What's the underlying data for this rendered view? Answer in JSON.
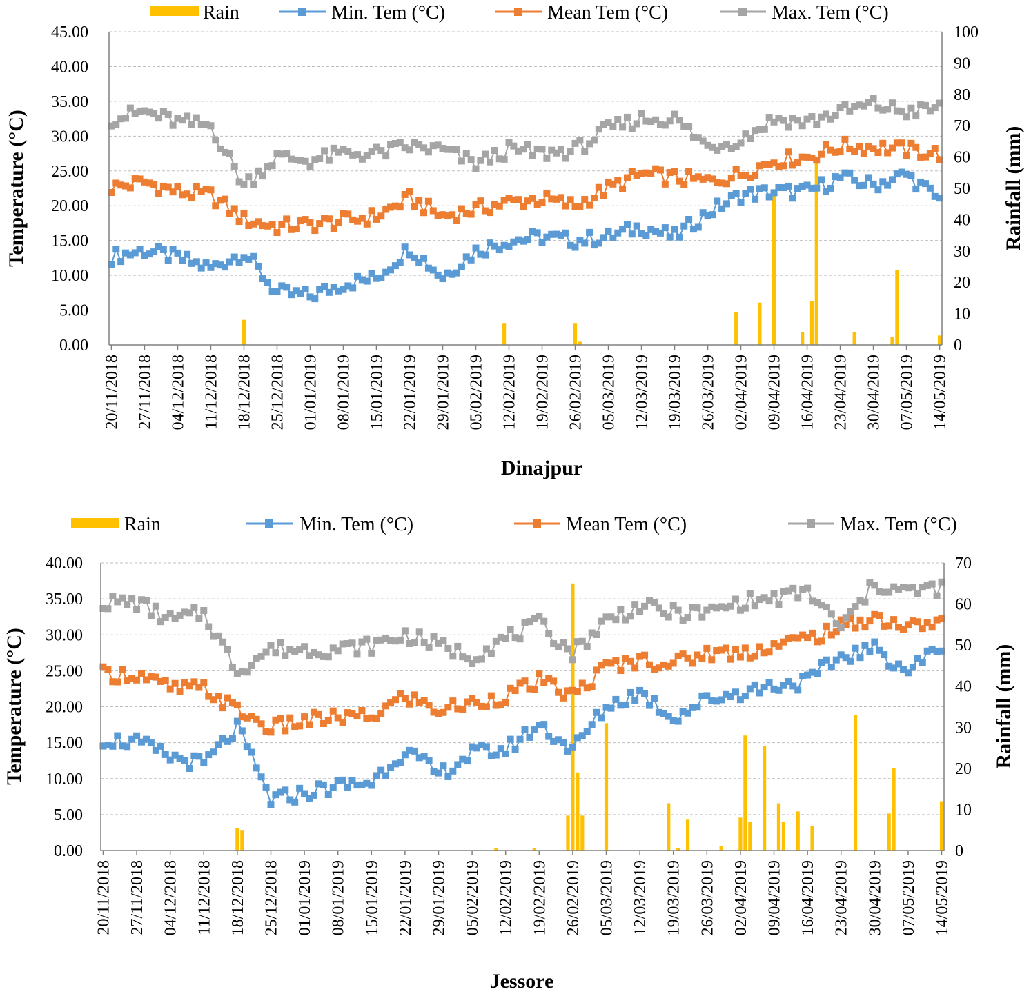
{
  "colors": {
    "rain": "#FFC000",
    "min": "#5B9BD5",
    "mean": "#ED7D31",
    "max": "#A5A5A5"
  },
  "legend": {
    "rain": "Rain",
    "min": "Min. Tem (°C)",
    "mean": "Mean Tem (°C)",
    "max": "Max. Tem (°C)"
  },
  "chart_data": [
    {
      "type": "line+bar",
      "title": "Dinajpur",
      "ylabel_left": "Temperature (°C)",
      "ylabel_right": "Rainfall (mm)",
      "ylim_left": [
        0,
        45
      ],
      "ylim_right": [
        0,
        100
      ],
      "yticks_left": [
        "0.00",
        "5.00",
        "10.00",
        "15.00",
        "20.00",
        "25.00",
        "30.00",
        "35.00",
        "40.00",
        "45.00"
      ],
      "yticks_right": [
        "0",
        "10",
        "20",
        "30",
        "40",
        "50",
        "60",
        "70",
        "80",
        "90",
        "100"
      ],
      "x_start": "20/11/2018",
      "x_end": "14/05/2019",
      "xticks": [
        "20/11/2018",
        "27/11/2018",
        "04/12/2018",
        "11/12/2018",
        "18/12/2018",
        "25/12/2018",
        "01/01/2019",
        "08/01/2019",
        "15/01/2019",
        "22/01/2019",
        "29/01/2019",
        "05/02/2019",
        "12/02/2019",
        "19/02/2019",
        "26/02/2019",
        "05/03/2019",
        "12/03/2019",
        "19/03/2019",
        "26/03/2019",
        "02/04/2019",
        "09/04/2019",
        "16/04/2019",
        "23/04/2019",
        "30/04/2019",
        "07/05/2019",
        "14/05/2019"
      ],
      "grid": true,
      "legend_position": "top",
      "series": [
        {
          "name": "Min. Tem (°C)",
          "weekly": [
            12.7,
            13.6,
            12.5,
            11.0,
            13.3,
            7.5,
            7.0,
            8.8,
            9.6,
            14.0,
            9.8,
            13.5,
            15.0,
            15.5,
            15.0,
            15.5,
            17.0,
            15.5,
            19.0,
            21.5,
            22.0,
            22.0,
            24.0,
            23.0,
            24.5,
            20.8
          ]
        },
        {
          "name": "Mean Tem (°C)",
          "weekly": [
            22.6,
            23.4,
            22.0,
            21.5,
            18.0,
            17.0,
            17.3,
            17.8,
            18.5,
            21.0,
            18.5,
            19.5,
            20.5,
            21.0,
            20.0,
            22.5,
            24.5,
            24.0,
            23.5,
            24.5,
            26.5,
            27.0,
            28.5,
            28.5,
            28.0,
            27.5
          ]
        },
        {
          "name": "Max. Tem (°C)",
          "weekly": [
            32.5,
            33.5,
            32.0,
            31.5,
            23.0,
            27.0,
            26.5,
            27.5,
            27.5,
            28.5,
            28.0,
            26.0,
            28.0,
            27.5,
            28.0,
            31.0,
            32.5,
            32.5,
            28.5,
            29.5,
            32.5,
            32.0,
            33.5,
            34.5,
            33.5,
            34.0
          ]
        },
        {
          "name": "Rain",
          "points": [
            [
              "18/12/2018",
              8
            ],
            [
              "11/02/2019",
              7
            ],
            [
              "26/02/2019",
              7
            ],
            [
              "27/02/2019",
              1
            ],
            [
              "01/04/2019",
              10.5
            ],
            [
              "06/04/2019",
              13.5
            ],
            [
              "09/04/2019",
              48
            ],
            [
              "15/04/2019",
              4
            ],
            [
              "17/04/2019",
              14
            ],
            [
              "18/04/2019",
              58
            ],
            [
              "26/04/2019",
              4
            ],
            [
              "04/05/2019",
              2.5
            ],
            [
              "05/05/2019",
              24
            ],
            [
              "14/05/2019",
              3
            ]
          ]
        }
      ]
    },
    {
      "type": "line+bar",
      "title": "Jessore",
      "ylabel_left": "Temperature (°C)",
      "ylabel_right": "Rainfall (mm)",
      "ylim_left": [
        0,
        40
      ],
      "ylim_right": [
        0,
        70
      ],
      "yticks_left": [
        "0.00",
        "5.00",
        "10.00",
        "15.00",
        "20.00",
        "25.00",
        "30.00",
        "35.00",
        "40.00"
      ],
      "yticks_right": [
        "0",
        "10",
        "20",
        "30",
        "40",
        "50",
        "60",
        "70"
      ],
      "x_start": "20/11/2018",
      "x_end": "14/05/2019",
      "xticks": [
        "20/11/2018",
        "27/11/2018",
        "04/12/2018",
        "11/12/2018",
        "18/12/2018",
        "25/12/2018",
        "01/01/2019",
        "08/01/2019",
        "15/01/2019",
        "22/01/2019",
        "29/01/2019",
        "05/02/2019",
        "12/02/2019",
        "19/02/2019",
        "26/02/2019",
        "05/03/2019",
        "12/03/2019",
        "19/03/2019",
        "26/03/2019",
        "02/04/2019",
        "09/04/2019",
        "16/04/2019",
        "23/04/2019",
        "30/04/2019",
        "07/05/2019",
        "14/05/2019"
      ],
      "grid": true,
      "legend_position": "top",
      "series": [
        {
          "name": "Min. Tem (°C)",
          "weekly": [
            15.5,
            15.0,
            13.0,
            12.0,
            17.0,
            7.0,
            8.0,
            9.0,
            9.5,
            14.0,
            10.5,
            13.5,
            14.0,
            17.5,
            14.0,
            20.0,
            22.0,
            18.5,
            21.0,
            22.0,
            23.0,
            23.5,
            27.0,
            28.0,
            25.0,
            28.5
          ]
        },
        {
          "name": "Mean Tem (°C)",
          "weekly": [
            24.5,
            24.5,
            22.5,
            22.5,
            19.5,
            17.0,
            18.0,
            18.5,
            18.5,
            21.5,
            19.5,
            20.5,
            21.5,
            23.5,
            21.5,
            25.5,
            26.5,
            26.0,
            27.5,
            27.5,
            28.5,
            29.5,
            31.0,
            32.5,
            31.0,
            32.0
          ]
        },
        {
          "name": "Max. Tem (°C)",
          "weekly": [
            34.5,
            34.5,
            32.0,
            33.0,
            25.0,
            28.0,
            28.0,
            28.0,
            28.5,
            30.0,
            28.5,
            27.0,
            29.5,
            31.5,
            27.5,
            32.0,
            34.0,
            33.0,
            33.0,
            34.5,
            35.0,
            36.0,
            31.0,
            37.0,
            36.0,
            36.5
          ]
        },
        {
          "name": "Rain",
          "points": [
            [
              "18/12/2018",
              5.5
            ],
            [
              "19/12/2018",
              5
            ],
            [
              "10/02/2019",
              0.5
            ],
            [
              "18/02/2019",
              0.5
            ],
            [
              "25/02/2019",
              8.5
            ],
            [
              "26/02/2019",
              65
            ],
            [
              "27/02/2019",
              19
            ],
            [
              "28/02/2019",
              8.5
            ],
            [
              "05/03/2019",
              31
            ],
            [
              "18/03/2019",
              11.5
            ],
            [
              "20/03/2019",
              0.5
            ],
            [
              "22/03/2019",
              7.5
            ],
            [
              "29/03/2019",
              1
            ],
            [
              "02/04/2019",
              8
            ],
            [
              "03/04/2019",
              28
            ],
            [
              "04/04/2019",
              7
            ],
            [
              "07/04/2019",
              25.5
            ],
            [
              "10/04/2019",
              11.5
            ],
            [
              "11/04/2019",
              7
            ],
            [
              "14/04/2019",
              9.5
            ],
            [
              "17/04/2019",
              6
            ],
            [
              "26/04/2019",
              33
            ],
            [
              "03/05/2019",
              9
            ],
            [
              "04/05/2019",
              20
            ],
            [
              "14/05/2019",
              12
            ]
          ]
        }
      ]
    }
  ]
}
